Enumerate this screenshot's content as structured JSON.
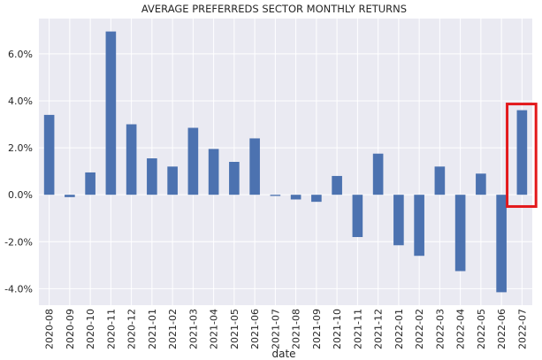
{
  "chart_data": {
    "type": "bar",
    "title": "AVERAGE PREFERREDS SECTOR MONTHLY RETURNS",
    "xlabel": "date",
    "ylabel": "",
    "ylim": [
      -4.7,
      7.5
    ],
    "yticks": [
      -4.0,
      -2.0,
      0.0,
      2.0,
      4.0,
      6.0
    ],
    "ytick_labels": [
      "-4.0%",
      "-2.0%",
      "0.0%",
      "2.0%",
      "4.0%",
      "6.0%"
    ],
    "grid": true,
    "categories": [
      "2020-08",
      "2020-09",
      "2020-10",
      "2020-11",
      "2020-12",
      "2021-01",
      "2021-02",
      "2021-03",
      "2021-04",
      "2021-05",
      "2021-06",
      "2021-07",
      "2021-08",
      "2021-09",
      "2021-10",
      "2021-11",
      "2021-12",
      "2022-01",
      "2022-02",
      "2022-03",
      "2022-04",
      "2022-05",
      "2022-06",
      "2022-07"
    ],
    "values": [
      3.4,
      -0.1,
      0.95,
      6.95,
      3.0,
      1.55,
      1.2,
      2.85,
      1.95,
      1.4,
      2.4,
      -0.05,
      -0.2,
      -0.3,
      0.8,
      -1.8,
      1.75,
      -2.15,
      -2.6,
      1.2,
      -3.25,
      0.9,
      -4.15,
      3.6
    ],
    "highlight_index": 23,
    "colors": {
      "bar": "#4c72b0",
      "background": "#eaeaf2",
      "grid": "#ffffff",
      "highlight": "#e3191c",
      "text": "#262626"
    }
  }
}
